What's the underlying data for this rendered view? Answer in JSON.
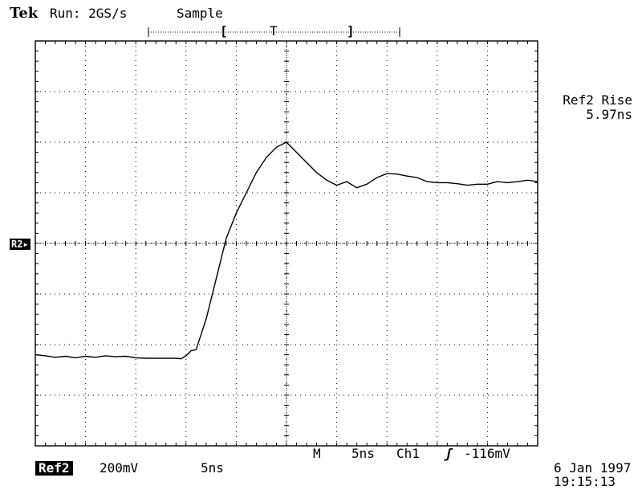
{
  "header": {
    "brand": "Tek",
    "run_status": "Run: 2GS/s",
    "acq_mode": "Sample",
    "trigger_bar": {
      "left_bracket": "[",
      "trigger_marker": "T",
      "right_bracket": "]"
    }
  },
  "measurement": {
    "label": "Ref2 Rise",
    "value": "5.97ns"
  },
  "reference_marker": "R2",
  "footer": {
    "ref_label": "Ref2",
    "ref_volts_per_div": "200mV",
    "ref_time_per_div": "5ns",
    "main_marker": "M",
    "main_time_per_div": "5ns",
    "trigger_source": "Ch1",
    "trigger_slope_icon": "rising-edge-icon",
    "trigger_slope_glyph": "ʃ",
    "trigger_level": "-116mV",
    "date": "6 Jan 1997",
    "time": "19:15:13"
  },
  "chart_data": {
    "type": "line",
    "title": "",
    "xlabel": "",
    "ylabel": "",
    "x_unit": "div",
    "y_unit": "div",
    "xlim": [
      -5,
      5
    ],
    "ylim": [
      -4,
      4
    ],
    "x_divisions": 10,
    "y_divisions": 8,
    "grid": true,
    "series": [
      {
        "x": [
          -5.0,
          -4.8,
          -4.6,
          -4.4,
          -4.2,
          -4.0,
          -3.8,
          -3.6,
          -3.4,
          -3.2,
          -3.0,
          -2.8,
          -2.6,
          -2.4,
          -2.2,
          -2.1,
          -2.0,
          -1.9,
          -1.8,
          -1.6,
          -1.4,
          -1.2,
          -1.0,
          -0.8,
          -0.6,
          -0.4,
          -0.2,
          0.0,
          0.2,
          0.4,
          0.6,
          0.8,
          1.0,
          1.2,
          1.4,
          1.6,
          1.8,
          2.0,
          2.2,
          2.4,
          2.6,
          2.8,
          3.0,
          3.2,
          3.4,
          3.6,
          3.8,
          4.0,
          4.2,
          4.4,
          4.6,
          4.8,
          5.0
        ],
        "y": [
          -2.2,
          -2.22,
          -2.25,
          -2.23,
          -2.26,
          -2.23,
          -2.25,
          -2.22,
          -2.24,
          -2.23,
          -2.26,
          -2.27,
          -2.27,
          -2.27,
          -2.27,
          -2.28,
          -2.22,
          -2.12,
          -2.1,
          -1.5,
          -0.7,
          0.1,
          0.6,
          1.0,
          1.4,
          1.7,
          1.9,
          2.0,
          1.8,
          1.6,
          1.4,
          1.25,
          1.15,
          1.22,
          1.1,
          1.17,
          1.3,
          1.38,
          1.37,
          1.33,
          1.3,
          1.22,
          1.2,
          1.2,
          1.18,
          1.15,
          1.17,
          1.17,
          1.22,
          1.2,
          1.22,
          1.25,
          1.22
        ]
      }
    ]
  }
}
